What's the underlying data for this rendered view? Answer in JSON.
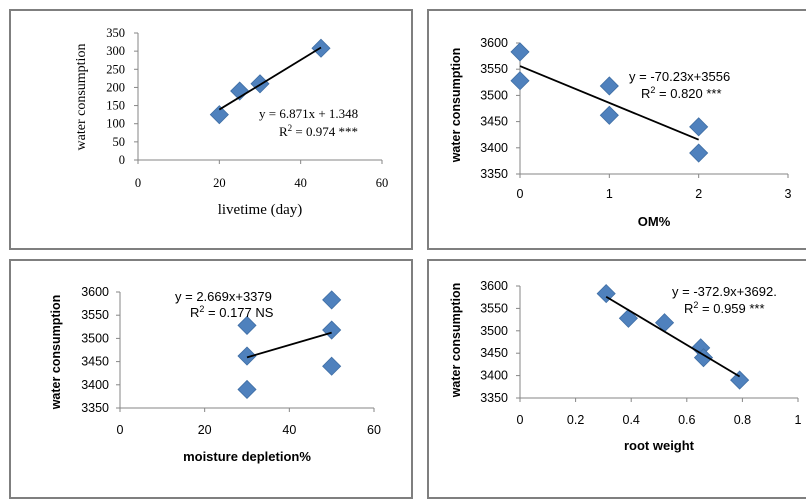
{
  "chart_data": [
    {
      "type": "scatter",
      "xlabel": "livetime (day)",
      "ylabel": "water consumption",
      "x_ticks": [
        "0",
        "20",
        "40",
        "60"
      ],
      "y_ticks": [
        "0",
        "50",
        "100",
        "150",
        "200",
        "250",
        "300",
        "350"
      ],
      "xlim": [
        0,
        60
      ],
      "ylim": [
        0,
        350
      ],
      "points": [
        [
          20,
          125
        ],
        [
          25,
          190
        ],
        [
          30,
          210
        ],
        [
          45,
          308
        ]
      ],
      "trendline": {
        "x": [
          20,
          45
        ],
        "y": [
          139,
          310
        ]
      },
      "equation": "y = 6.871x + 1.348",
      "r2_label": "R",
      "r2_value": " = 0.974 ***",
      "marker_color": "#4f81bd",
      "line_color": "#000000"
    },
    {
      "type": "scatter",
      "xlabel": "OM%",
      "ylabel": "water consumption",
      "x_ticks": [
        "0",
        "1",
        "2",
        "3"
      ],
      "y_ticks": [
        "3350",
        "3400",
        "3450",
        "3500",
        "3550",
        "3600"
      ],
      "xlim": [
        0,
        3
      ],
      "ylim": [
        3350,
        3600
      ],
      "points": [
        [
          0,
          3583
        ],
        [
          0,
          3528
        ],
        [
          1,
          3518
        ],
        [
          1,
          3462
        ],
        [
          2,
          3440
        ],
        [
          2,
          3390
        ]
      ],
      "trendline": {
        "x": [
          0,
          2
        ],
        "y": [
          3556,
          3415.5
        ]
      },
      "equation": "y = -70.23x+3556",
      "r2_label": "R",
      "r2_value": " = 0.820 ***",
      "marker_color": "#4f81bd",
      "line_color": "#000000"
    },
    {
      "type": "scatter",
      "xlabel": "moisture depletion%",
      "ylabel": "water consumption",
      "x_ticks": [
        "0",
        "20",
        "40",
        "60"
      ],
      "y_ticks": [
        "3350",
        "3400",
        "3450",
        "3500",
        "3550",
        "3600"
      ],
      "xlim": [
        0,
        60
      ],
      "ylim": [
        3350,
        3600
      ],
      "points": [
        [
          30,
          3528
        ],
        [
          30,
          3462
        ],
        [
          30,
          3390
        ],
        [
          50,
          3583
        ],
        [
          50,
          3518
        ],
        [
          50,
          3440
        ]
      ],
      "trendline": {
        "x": [
          30,
          50
        ],
        "y": [
          3459,
          3512.5
        ]
      },
      "equation": "y = 2.669x+3379",
      "r2_label": "R",
      "r2_value": " = 0.177 NS",
      "marker_color": "#4f81bd",
      "line_color": "#000000"
    },
    {
      "type": "scatter",
      "xlabel": "root weight",
      "ylabel": "water consumption",
      "x_ticks": [
        "0",
        "0.2",
        "0.4",
        "0.6",
        "0.8",
        "1"
      ],
      "y_ticks": [
        "3350",
        "3400",
        "3450",
        "3500",
        "3550",
        "3600"
      ],
      "xlim": [
        0,
        1
      ],
      "ylim": [
        3350,
        3600
      ],
      "points": [
        [
          0.31,
          3583
        ],
        [
          0.39,
          3528
        ],
        [
          0.52,
          3518
        ],
        [
          0.65,
          3462
        ],
        [
          0.66,
          3440
        ],
        [
          0.79,
          3390
        ]
      ],
      "trendline": {
        "x": [
          0.31,
          0.79
        ],
        "y": [
          3576,
          3398
        ]
      },
      "equation": "y = -372.9x+3692.",
      "r2_label": "R",
      "r2_value": " = 0.959  ***",
      "marker_color": "#4f81bd",
      "line_color": "#000000"
    }
  ]
}
